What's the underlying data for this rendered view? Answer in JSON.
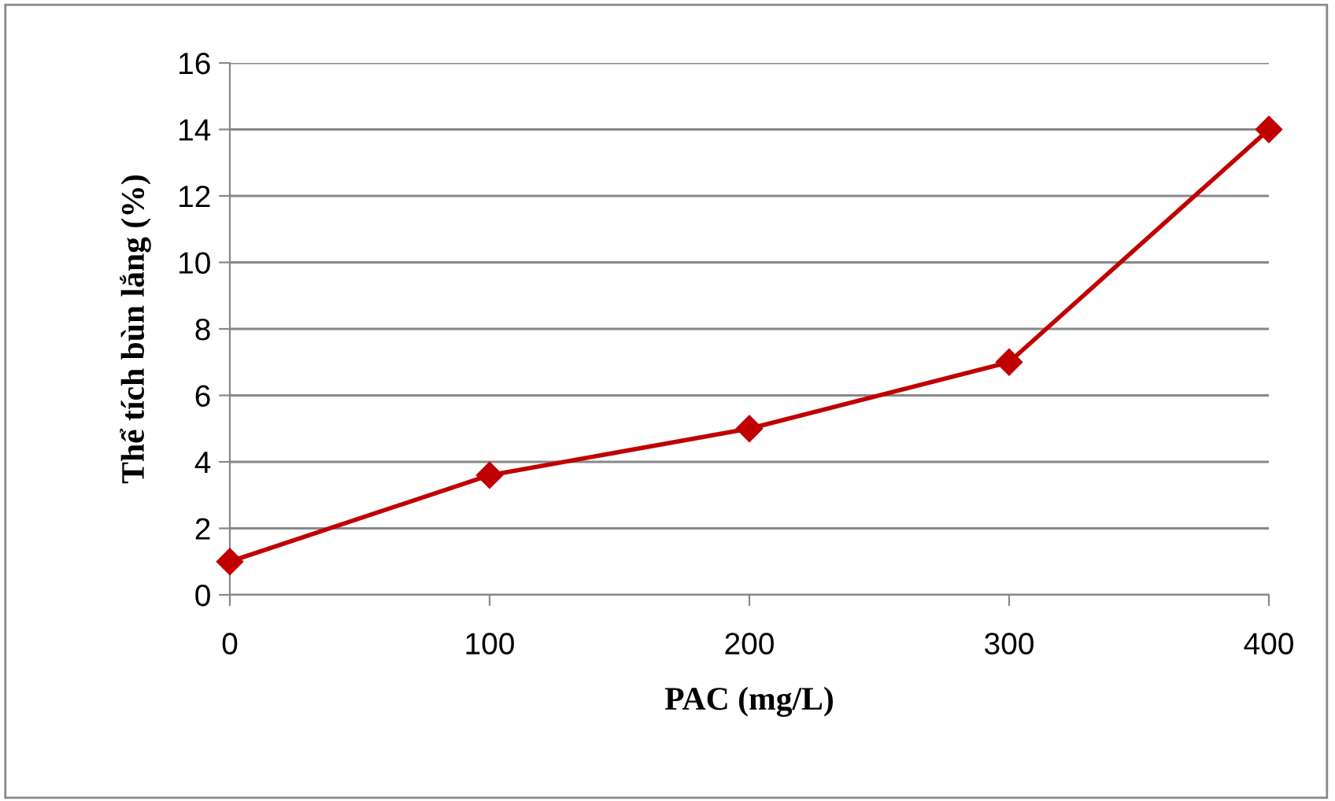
{
  "chart_data": {
    "type": "line",
    "xlabel": "PAC (mg/L)",
    "ylabel": "Thể tích bùn lắng (%)",
    "x": [
      0,
      100,
      200,
      300,
      400
    ],
    "series": [
      {
        "color": "#c00000",
        "values": [
          1,
          3.6,
          5,
          7,
          14
        ]
      }
    ],
    "xlim": [
      0,
      400
    ],
    "xticks": [
      0,
      100,
      200,
      300,
      400
    ],
    "ylim": [
      0,
      16
    ],
    "yticks": [
      0,
      2,
      4,
      6,
      8,
      10,
      12,
      14,
      16
    ],
    "grid": "y",
    "marker": "diamond",
    "line_style": "solid"
  }
}
